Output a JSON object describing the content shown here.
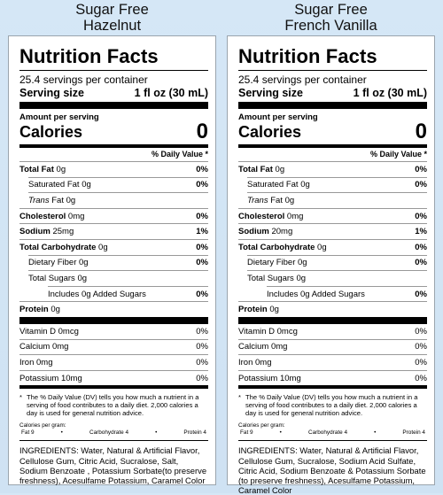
{
  "labels": [
    {
      "flavor_line1": "Sugar Free",
      "flavor_line2": "Hazelnut",
      "title": "Nutrition Facts",
      "servings": "25.4 servings per container",
      "serving_size_label": "Serving size",
      "serving_size_value": "1 fl oz (30 mL)",
      "amount_per_serving": "Amount per serving",
      "calories_label": "Calories",
      "calories_value": "0",
      "dv_header": "% Daily Value *",
      "total_fat_label": "Total Fat",
      "total_fat_value": "0g",
      "total_fat_pct": "0%",
      "sat_fat_label": "Saturated Fat 0g",
      "sat_fat_pct": "0%",
      "trans_word": "Trans",
      "trans_rest": "Fat 0g",
      "chol_label": "Cholesterol",
      "chol_value": "0mg",
      "chol_pct": "0%",
      "sodium_label": "Sodium",
      "sodium_value": "25mg",
      "sodium_pct": "1%",
      "carb_label": "Total Carbohydrate",
      "carb_value": "0g",
      "carb_pct": "0%",
      "fiber_label": "Dietary Fiber 0g",
      "fiber_pct": "0%",
      "sugars_label": "Total Sugars 0g",
      "added_sugars_label": "Includes 0g Added Sugars",
      "added_sugars_pct": "0%",
      "protein_label": "Protein",
      "protein_value": "0g",
      "vitd_label": "Vitamin D 0mcg",
      "vitd_pct": "0%",
      "calcium_label": "Calcium 0mg",
      "calcium_pct": "0%",
      "iron_label": "Iron 0mg",
      "iron_pct": "0%",
      "potassium_label": "Potassium 10mg",
      "potassium_pct": "0%",
      "footnote_star": "*",
      "footnote": "The % Daily Value (DV) tells you how much a nutrient in a serving of food contributes to a daily diet. 2,000 calories a day is used for general nutrition advice.",
      "calgram_title": "Calories per gram:",
      "calgram_fat": "Fat 9",
      "calgram_dot": "•",
      "calgram_carb": "Carbohydrate 4",
      "calgram_protein": "Protein 4",
      "ingredients": "INGREDIENTS: Water, Natural & Artificial Flavor, Cellulose Gum, Citric Acid, Sucralose, Salt, Sodium Benzoate , Potassium Sorbate(to preserve freshness), Acesulfame Potassium, Caramel Color"
    },
    {
      "flavor_line1": "Sugar Free",
      "flavor_line2": "French Vanilla",
      "title": "Nutrition Facts",
      "servings": "25.4 servings per container",
      "serving_size_label": "Serving size",
      "serving_size_value": "1 fl oz (30 mL)",
      "amount_per_serving": "Amount per serving",
      "calories_label": "Calories",
      "calories_value": "0",
      "dv_header": "% Daily Value *",
      "total_fat_label": "Total Fat",
      "total_fat_value": "0g",
      "total_fat_pct": "0%",
      "sat_fat_label": "Saturated Fat 0g",
      "sat_fat_pct": "0%",
      "trans_word": "Trans",
      "trans_rest": "Fat 0g",
      "chol_label": "Cholesterol",
      "chol_value": "0mg",
      "chol_pct": "0%",
      "sodium_label": "Sodium",
      "sodium_value": "20mg",
      "sodium_pct": "1%",
      "carb_label": "Total Carbohydrate",
      "carb_value": "0g",
      "carb_pct": "0%",
      "fiber_label": "Dietary Fiber 0g",
      "fiber_pct": "0%",
      "sugars_label": "Total Sugars 0g",
      "added_sugars_label": "Includes 0g Added Sugars",
      "added_sugars_pct": "0%",
      "protein_label": "Protein",
      "protein_value": "0g",
      "vitd_label": "Vitamin D 0mcg",
      "vitd_pct": "0%",
      "calcium_label": "Calcium 0mg",
      "calcium_pct": "0%",
      "iron_label": "Iron 0mg",
      "iron_pct": "0%",
      "potassium_label": "Potassium 10mg",
      "potassium_pct": "0%",
      "footnote_star": "*",
      "footnote": "The % Daily Value (DV) tells you how much a nutrient in a serving of food contributes to a daily diet. 2,000 calories a day is used for general nutrition advice.",
      "calgram_title": "Calories per gram:",
      "calgram_fat": "Fat 9",
      "calgram_dot": "•",
      "calgram_carb": "Carbohydrate 4",
      "calgram_protein": "Protein 4",
      "ingredients": "INGREDIENTS: Water, Natural & Artificial Flavor, Cellulose Gum, Sucralose, Sodium Acid Sulfate, Citric Acid, Sodium Benzoate & Potassium Sorbate (to preserve freshness), Acesulfame Potassium, Caramel Color"
    }
  ]
}
